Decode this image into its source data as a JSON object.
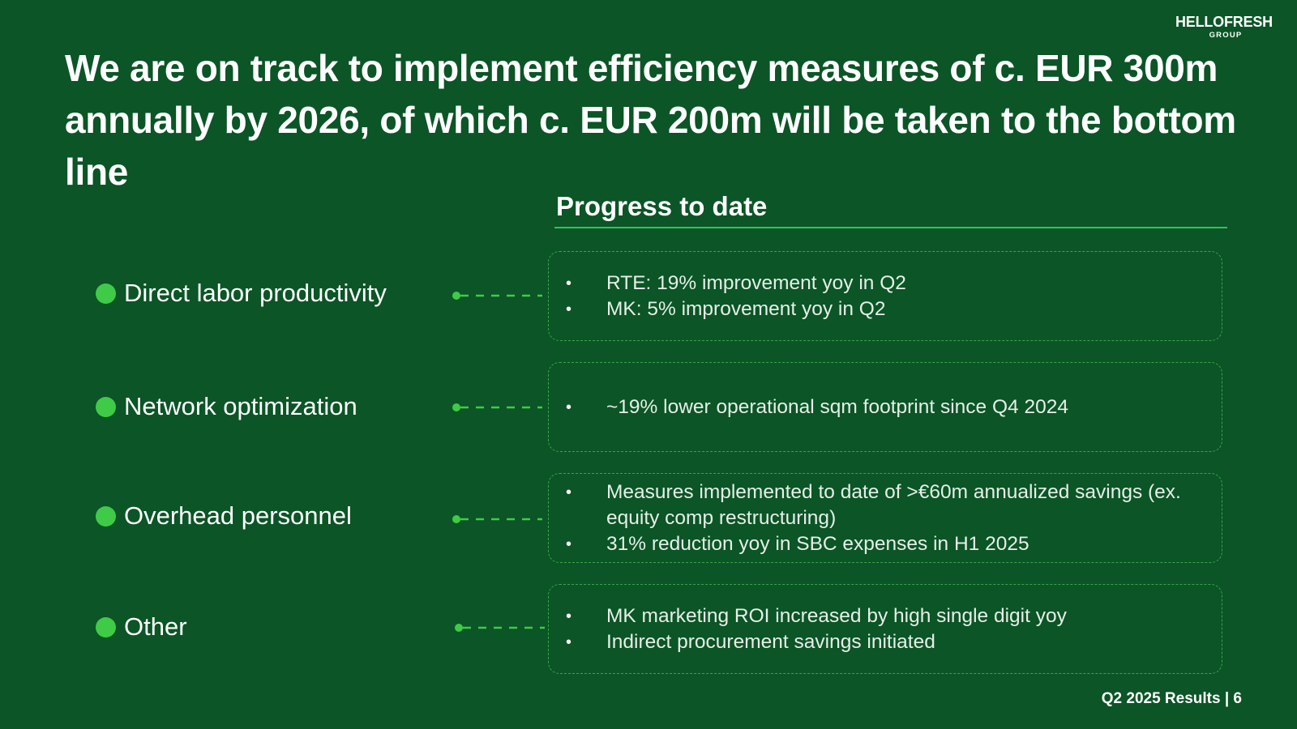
{
  "logo": {
    "main": "HELLOFRESH",
    "sub": "GROUP"
  },
  "headline": "We are on track to implement efficiency measures of c. EUR 300m annually by 2026, of which c. EUR 200m will be taken to the bottom line",
  "progress": {
    "title": "Progress to date"
  },
  "levers": [
    {
      "label": "Direct labor productivity",
      "bullets": [
        "RTE: 19% improvement yoy in Q2",
        "MK: 5% improvement yoy in Q2"
      ]
    },
    {
      "label": "Network optimization",
      "bullets": [
        "~19% lower operational sqm footprint since Q4 2024"
      ]
    },
    {
      "label": "Overhead personnel",
      "bullets": [
        "Measures implemented to date of >€60m annualized savings (ex. equity comp restructuring)",
        "31% reduction yoy in SBC expenses in H1 2025"
      ]
    },
    {
      "label": "Other",
      "bullets": [
        "MK marketing ROI increased by high single digit yoy",
        "Indirect procurement savings initiated"
      ]
    }
  ],
  "footer": "Q2 2025 Results | 6",
  "colors": {
    "background": "#0b5526",
    "accent_green": "#3fcb48",
    "rule_green": "#2fc455",
    "card_border": "#38a64a"
  }
}
